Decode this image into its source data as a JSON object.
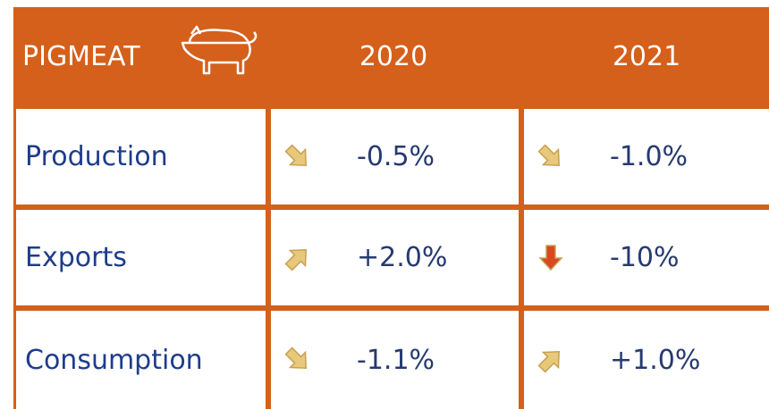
{
  "header": {
    "title": "PIGMEAT",
    "columns": [
      "2020",
      "2021"
    ]
  },
  "table": {
    "rows": [
      [
        "Production",
        "-0.5%",
        "-1.0%"
      ],
      [
        "Exports",
        "+2.0%",
        "-10%"
      ],
      [
        "Consumption",
        "-1.1%",
        "+1.0%"
      ]
    ]
  }
}
